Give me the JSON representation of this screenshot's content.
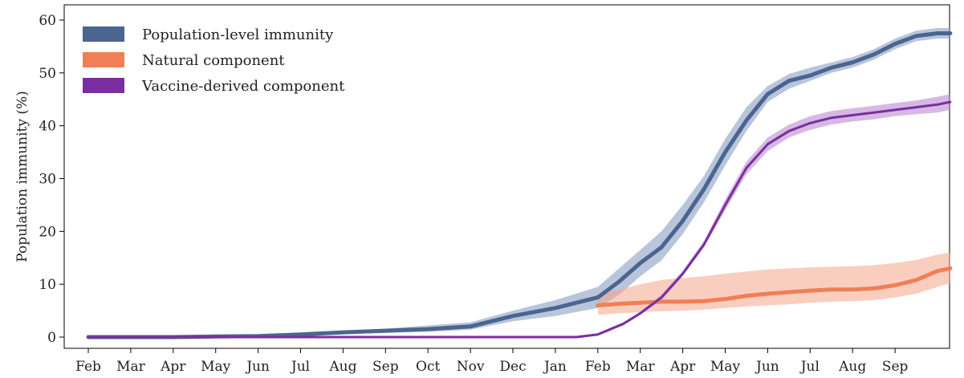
{
  "chart_data": {
    "type": "line",
    "xlabel": "",
    "ylabel": "Population immunity (%)",
    "ylim": [
      0,
      60
    ],
    "yticks": [
      0,
      10,
      20,
      30,
      40,
      50,
      60
    ],
    "x_tick_labels": [
      "Feb",
      "Mar",
      "Apr",
      "May",
      "Jun",
      "Jul",
      "Aug",
      "Sep",
      "Oct",
      "Nov",
      "Dec",
      "Jan",
      "Feb",
      "Mar",
      "Apr",
      "May",
      "Jun",
      "Jul",
      "Aug",
      "Sep"
    ],
    "xlim": [
      0,
      20.5
    ],
    "legend_position": "top-left",
    "grid": false,
    "series": [
      {
        "name": "Population-level immunity",
        "color": "#4b6590",
        "band_color": "#7f96be",
        "x": [
          0,
          1,
          2,
          3,
          4,
          5,
          6,
          7,
          8,
          9,
          10,
          11,
          12,
          12.5,
          13,
          13.5,
          14,
          14.5,
          15,
          15.5,
          16,
          16.5,
          17,
          17.5,
          18,
          18.5,
          19,
          19.5,
          20,
          20.3
        ],
        "y": [
          0,
          0,
          0,
          0.1,
          0.2,
          0.5,
          0.9,
          1.2,
          1.5,
          2.0,
          4.0,
          5.5,
          7.5,
          10.5,
          14.0,
          17.0,
          22.0,
          28.0,
          35.0,
          41.0,
          46.0,
          48.5,
          49.5,
          51.0,
          52.0,
          53.5,
          55.5,
          57.0,
          57.5,
          57.5
        ],
        "lower": [
          0,
          0,
          0,
          0.05,
          0.1,
          0.3,
          0.6,
          0.8,
          1.0,
          1.4,
          3.0,
          4.0,
          5.5,
          8.0,
          11.5,
          14.5,
          19.5,
          25.5,
          32.5,
          39.0,
          44.5,
          47.0,
          48.5,
          50.0,
          51.0,
          52.5,
          54.5,
          56.0,
          56.5,
          56.5
        ],
        "upper": [
          0,
          0,
          0,
          0.15,
          0.3,
          0.8,
          1.2,
          1.6,
          2.2,
          2.8,
          5.0,
          7.0,
          9.5,
          13.0,
          16.5,
          20.0,
          25.0,
          30.5,
          37.5,
          43.5,
          47.5,
          49.8,
          51.0,
          52.0,
          53.0,
          54.5,
          56.5,
          58.0,
          58.5,
          58.5
        ]
      },
      {
        "name": "Natural component",
        "color": "#f07f55",
        "band_color": "#f4a58a",
        "x": [
          12,
          12.5,
          13,
          13.5,
          14,
          14.5,
          15,
          15.5,
          16,
          16.5,
          17,
          17.5,
          18,
          18.5,
          19,
          19.5,
          20,
          20.3
        ],
        "y": [
          6.0,
          6.3,
          6.5,
          6.7,
          6.7,
          6.8,
          7.2,
          7.8,
          8.2,
          8.5,
          8.8,
          9.0,
          9.0,
          9.2,
          9.8,
          10.8,
          12.5,
          13.0
        ],
        "lower": [
          4.2,
          4.5,
          4.7,
          4.9,
          5.0,
          5.2,
          5.5,
          5.8,
          6.0,
          6.2,
          6.5,
          6.7,
          6.8,
          7.0,
          7.5,
          8.2,
          9.5,
          10.2
        ],
        "upper": [
          8.2,
          9.0,
          10.0,
          10.8,
          11.2,
          11.5,
          12.0,
          12.4,
          12.8,
          13.0,
          13.2,
          13.3,
          13.4,
          13.6,
          14.0,
          14.6,
          15.6,
          16.0
        ]
      },
      {
        "name": "Vaccine-derived component",
        "color": "#7a2ea0",
        "band_color": "#b580cc",
        "x": [
          0,
          1,
          2,
          3,
          4,
          5,
          6,
          7,
          8,
          9,
          10,
          11,
          11.5,
          12,
          12.3,
          12.6,
          13,
          13.5,
          14,
          14.5,
          15,
          15.5,
          16,
          16.5,
          17,
          17.5,
          18,
          18.5,
          19,
          19.5,
          20,
          20.3
        ],
        "y": [
          0,
          0,
          0,
          0,
          0,
          0,
          0,
          0,
          0,
          0,
          0,
          0,
          0,
          0.5,
          1.5,
          2.5,
          4.5,
          7.5,
          12.0,
          17.5,
          25.0,
          32.0,
          36.5,
          39.0,
          40.5,
          41.5,
          42.0,
          42.5,
          43.0,
          43.5,
          44.0,
          44.5
        ],
        "lower": [
          0,
          0,
          0,
          0,
          0,
          0,
          0,
          0,
          0,
          0,
          0,
          0,
          0,
          0.3,
          1.2,
          2.2,
          4.2,
          7.0,
          11.5,
          17.0,
          24.0,
          30.8,
          35.2,
          37.8,
          39.2,
          40.2,
          40.8,
          41.2,
          41.8,
          42.2,
          42.5,
          43.0
        ],
        "upper": [
          0,
          0,
          0,
          0,
          0,
          0,
          0,
          0,
          0,
          0,
          0,
          0,
          0,
          0.7,
          1.8,
          2.8,
          4.8,
          8.0,
          12.5,
          18.2,
          26.0,
          33.2,
          37.8,
          40.2,
          41.8,
          42.8,
          43.3,
          43.8,
          44.3,
          44.8,
          45.5,
          46.0
        ]
      }
    ]
  }
}
